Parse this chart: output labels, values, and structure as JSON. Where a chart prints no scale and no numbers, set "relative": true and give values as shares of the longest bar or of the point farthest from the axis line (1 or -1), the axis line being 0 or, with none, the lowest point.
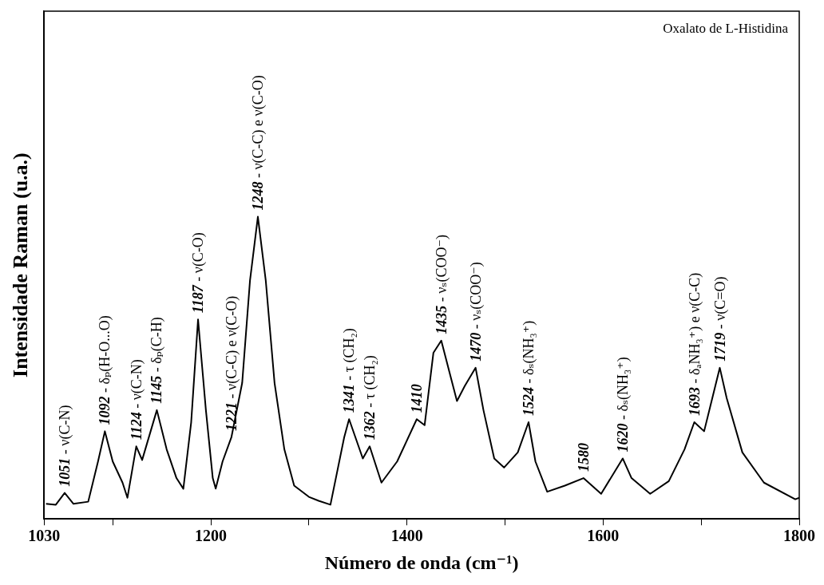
{
  "chart_data": {
    "type": "line",
    "title": "Oxalato de L-Histidina",
    "xlabel": "Número de onda (cm⁻¹)",
    "ylabel": "Intensidade Raman (u.a.)",
    "relative": true,
    "color": "#000000",
    "marker": "none",
    "grid": false,
    "legend": false,
    "xlim": [
      1030,
      1800
    ],
    "xticks": [
      1030,
      {
        "value": 1100,
        "label": null
      },
      1200,
      {
        "value": 1300,
        "label": null
      },
      1400,
      {
        "value": 1500,
        "label": null
      },
      1600,
      {
        "value": 1700,
        "label": null
      },
      1800
    ],
    "x": [
      1032,
      1042,
      1051,
      1060,
      1075,
      1085,
      1092,
      1100,
      1110,
      1115,
      1124,
      1130,
      1145,
      1155,
      1165,
      1172,
      1180,
      1187,
      1195,
      1202,
      1205,
      1212,
      1221,
      1232,
      1240,
      1248,
      1256,
      1265,
      1275,
      1285,
      1300,
      1310,
      1322,
      1336,
      1341,
      1355,
      1362,
      1374,
      1390,
      1410,
      1418,
      1427,
      1435,
      1443,
      1451,
      1459,
      1470,
      1478,
      1489,
      1499,
      1513,
      1524,
      1531,
      1543,
      1561,
      1580,
      1598,
      1620,
      1629,
      1648,
      1667,
      1683,
      1693,
      1703,
      1719,
      1726,
      1742,
      1764,
      1796,
      1800
    ],
    "values": [
      0.05,
      0.047,
      0.086,
      0.05,
      0.057,
      0.19,
      0.29,
      0.19,
      0.12,
      0.07,
      0.24,
      0.195,
      0.36,
      0.23,
      0.135,
      0.1,
      0.32,
      0.66,
      0.36,
      0.135,
      0.1,
      0.19,
      0.27,
      0.45,
      0.79,
      1.0,
      0.79,
      0.45,
      0.23,
      0.11,
      0.073,
      0.06,
      0.047,
      0.27,
      0.33,
      0.2,
      0.24,
      0.12,
      0.19,
      0.33,
      0.31,
      0.55,
      0.59,
      0.49,
      0.39,
      0.44,
      0.5,
      0.36,
      0.2,
      0.17,
      0.22,
      0.32,
      0.19,
      0.09,
      0.11,
      0.135,
      0.083,
      0.2,
      0.135,
      0.083,
      0.125,
      0.23,
      0.32,
      0.29,
      0.5,
      0.4,
      0.22,
      0.12,
      0.065,
      0.07
    ],
    "annotations": [
      {
        "text": "1051 - ν(C-N)",
        "x": 1051,
        "y": 0.086
      },
      {
        "text": "1092 - δₚ(H-O...O)",
        "x": 1092,
        "y": 0.29
      },
      {
        "text": "1124 - ν(C-N)",
        "x": 1124,
        "y": 0.24
      },
      {
        "text": "1145 - δₚ(C-H)",
        "x": 1145,
        "y": 0.36
      },
      {
        "text": "1187 - ν(C-O)",
        "x": 1187,
        "y": 0.66
      },
      {
        "text": "1221 - ν(C-C) e ν(C-O)",
        "x": 1221,
        "y": 0.27
      },
      {
        "text": "1248 - ν(C-C) e ν(C-O)",
        "x": 1248,
        "y": 1.0
      },
      {
        "text": "1341 - τ (CH₂)",
        "x": 1341,
        "y": 0.33
      },
      {
        "text": "1362 - τ (CH₂)",
        "x": 1362,
        "y": 0.24
      },
      {
        "text": "1410",
        "x": 1410,
        "y": 0.33
      },
      {
        "text": "1435 - νₛ(COO⁻)",
        "x": 1435,
        "y": 0.59
      },
      {
        "text": "1470 - νₛ(COO⁻)",
        "x": 1470,
        "y": 0.5
      },
      {
        "text": "1524 - δₛ(NH₃⁺)",
        "x": 1524,
        "y": 0.32
      },
      {
        "text": "1580",
        "x": 1580,
        "y": 0.135
      },
      {
        "text": "1620 - δₛ(NH₃⁺)",
        "x": 1620,
        "y": 0.2
      },
      {
        "text": "1693 - δₐNH₃⁺) e ν(C-C)",
        "x": 1693,
        "y": 0.32
      },
      {
        "text": "1719 - ν(C=O)",
        "x": 1719,
        "y": 0.5
      }
    ]
  }
}
